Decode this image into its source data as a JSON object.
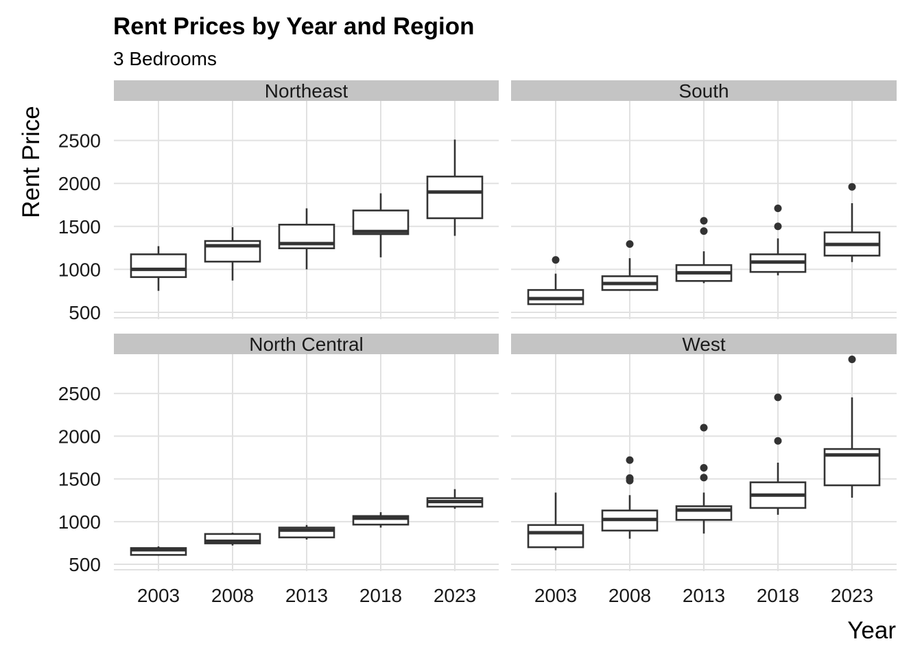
{
  "chart_data": {
    "type": "boxplot",
    "title": "Rent Prices by Year and Region",
    "subtitle": "3 Bedrooms",
    "xlabel": "Year",
    "ylabel": "Rent Price",
    "categories": [
      "2003",
      "2008",
      "2013",
      "2018",
      "2023"
    ],
    "y_ticks": [
      500,
      1000,
      1500,
      2000,
      2500
    ],
    "ylim": [
      420,
      2960
    ],
    "grid": true,
    "facets": [
      {
        "name": "Northeast",
        "boxes": [
          {
            "x": "2003",
            "lower": 750,
            "q1": 910,
            "median": 1000,
            "q3": 1175,
            "upper": 1270,
            "outliers": []
          },
          {
            "x": "2008",
            "lower": 870,
            "q1": 1090,
            "median": 1275,
            "q3": 1330,
            "upper": 1490,
            "outliers": []
          },
          {
            "x": "2013",
            "lower": 1000,
            "q1": 1245,
            "median": 1300,
            "q3": 1520,
            "upper": 1710,
            "outliers": []
          },
          {
            "x": "2018",
            "lower": 1140,
            "q1": 1410,
            "median": 1440,
            "q3": 1685,
            "upper": 1885,
            "outliers": []
          },
          {
            "x": "2023",
            "lower": 1390,
            "q1": 1595,
            "median": 1900,
            "q3": 2080,
            "upper": 2510,
            "outliers": []
          }
        ]
      },
      {
        "name": "South",
        "boxes": [
          {
            "x": "2003",
            "lower": 590,
            "q1": 595,
            "median": 660,
            "q3": 760,
            "upper": 950,
            "outliers": [
              1110
            ]
          },
          {
            "x": "2008",
            "lower": 750,
            "q1": 760,
            "median": 835,
            "q3": 920,
            "upper": 1130,
            "outliers": [
              1295
            ]
          },
          {
            "x": "2013",
            "lower": 840,
            "q1": 865,
            "median": 960,
            "q3": 1050,
            "upper": 1210,
            "outliers": [
              1445,
              1565
            ]
          },
          {
            "x": "2018",
            "lower": 930,
            "q1": 970,
            "median": 1085,
            "q3": 1175,
            "upper": 1360,
            "outliers": [
              1500,
              1710
            ]
          },
          {
            "x": "2023",
            "lower": 1085,
            "q1": 1160,
            "median": 1290,
            "q3": 1430,
            "upper": 1770,
            "outliers": [
              1960
            ]
          }
        ]
      },
      {
        "name": "North Central",
        "boxes": [
          {
            "x": "2003",
            "lower": 600,
            "q1": 610,
            "median": 670,
            "q3": 690,
            "upper": 710,
            "outliers": []
          },
          {
            "x": "2008",
            "lower": 720,
            "q1": 745,
            "median": 770,
            "q3": 855,
            "upper": 870,
            "outliers": []
          },
          {
            "x": "2013",
            "lower": 790,
            "q1": 815,
            "median": 900,
            "q3": 930,
            "upper": 960,
            "outliers": []
          },
          {
            "x": "2018",
            "lower": 930,
            "q1": 965,
            "median": 1040,
            "q3": 1065,
            "upper": 1110,
            "outliers": []
          },
          {
            "x": "2023",
            "lower": 1150,
            "q1": 1175,
            "median": 1235,
            "q3": 1275,
            "upper": 1380,
            "outliers": []
          }
        ]
      },
      {
        "name": "West",
        "boxes": [
          {
            "x": "2003",
            "lower": 665,
            "q1": 700,
            "median": 870,
            "q3": 960,
            "upper": 1340,
            "outliers": []
          },
          {
            "x": "2008",
            "lower": 800,
            "q1": 895,
            "median": 1025,
            "q3": 1130,
            "upper": 1310,
            "outliers": [
              1480,
              1510,
              1720
            ]
          },
          {
            "x": "2013",
            "lower": 860,
            "q1": 1020,
            "median": 1135,
            "q3": 1180,
            "upper": 1340,
            "outliers": [
              1515,
              1630,
              2100
            ]
          },
          {
            "x": "2018",
            "lower": 1080,
            "q1": 1160,
            "median": 1310,
            "q3": 1460,
            "upper": 1690,
            "outliers": [
              1945,
              2455
            ]
          },
          {
            "x": "2023",
            "lower": 1280,
            "q1": 1425,
            "median": 1780,
            "q3": 1850,
            "upper": 2455,
            "outliers": [
              2900
            ]
          }
        ]
      }
    ]
  }
}
